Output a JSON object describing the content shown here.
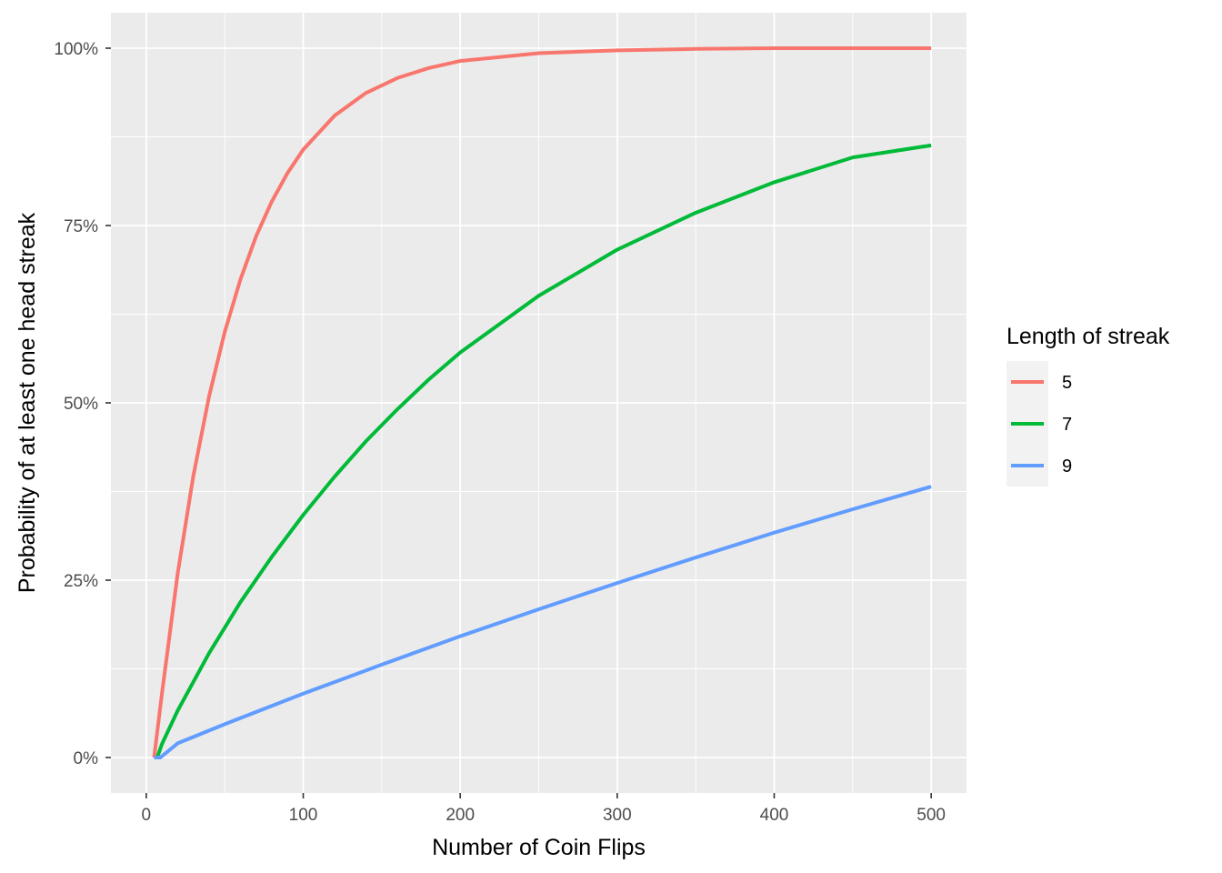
{
  "chart_data": {
    "type": "line",
    "title": "",
    "xlabel": "Number of Coin Flips",
    "ylabel": "Probability of at least one head streak",
    "xlim": [
      0,
      500
    ],
    "ylim": [
      0,
      1
    ],
    "x_ticks": [
      {
        "value": 0,
        "label": "0"
      },
      {
        "value": 100,
        "label": "100"
      },
      {
        "value": 200,
        "label": "200"
      },
      {
        "value": 300,
        "label": "300"
      },
      {
        "value": 400,
        "label": "400"
      },
      {
        "value": 500,
        "label": "500"
      }
    ],
    "y_ticks": [
      {
        "value": 0,
        "label": "0%"
      },
      {
        "value": 0.25,
        "label": "25%"
      },
      {
        "value": 0.5,
        "label": "50%"
      },
      {
        "value": 0.75,
        "label": "75%"
      },
      {
        "value": 1,
        "label": "100%"
      }
    ],
    "grid": true,
    "panel_background": "#EBEBEB",
    "legend": {
      "title": "Length of streak",
      "position": "right"
    },
    "series": [
      {
        "name": "5",
        "color": "#F8766D",
        "x": [
          5,
          10,
          20,
          30,
          40,
          50,
          60,
          70,
          80,
          90,
          100,
          120,
          140,
          160,
          180,
          200,
          250,
          300,
          350,
          400,
          450,
          500
        ],
        "y": [
          0,
          0.09,
          0.259,
          0.397,
          0.509,
          0.6,
          0.674,
          0.735,
          0.784,
          0.824,
          0.857,
          0.905,
          0.937,
          0.958,
          0.972,
          0.982,
          0.993,
          0.997,
          0.999,
          1.0,
          1.0,
          1.0
        ]
      },
      {
        "name": "7",
        "color": "#00BA38",
        "x": [
          7,
          10,
          20,
          40,
          60,
          80,
          100,
          120,
          140,
          160,
          180,
          200,
          250,
          300,
          350,
          400,
          450,
          500
        ],
        "y": [
          0,
          0.019,
          0.066,
          0.147,
          0.219,
          0.283,
          0.342,
          0.396,
          0.446,
          0.491,
          0.533,
          0.571,
          0.651,
          0.716,
          0.768,
          0.811,
          0.846,
          0.863
        ]
      },
      {
        "name": "9",
        "color": "#619CFF",
        "x": [
          5,
          9,
          20,
          50,
          100,
          150,
          200,
          250,
          300,
          350,
          400,
          450,
          500
        ],
        "y": [
          0,
          0,
          0.02,
          0.047,
          0.09,
          0.131,
          0.171,
          0.209,
          0.246,
          0.282,
          0.317,
          0.35,
          0.382
        ]
      }
    ]
  }
}
